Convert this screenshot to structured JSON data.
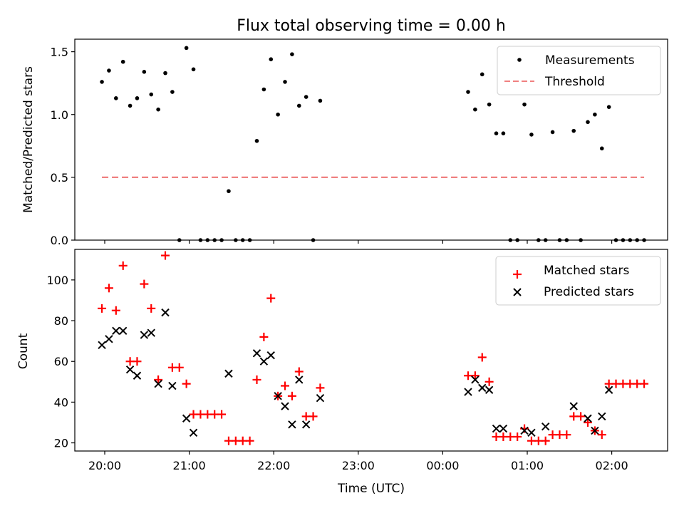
{
  "chart_data": [
    {
      "type": "scatter",
      "title": "Flux total observing time = 0.00 h",
      "xlabel": "",
      "ylabel": "Matched/Predicted stars",
      "ylim": [
        0,
        1.6
      ],
      "yticks": [
        0.0,
        0.5,
        1.0,
        1.5
      ],
      "ytick_labels": [
        "0.0",
        "0.5",
        "1.0",
        "1.5"
      ],
      "legend": {
        "placement": "top-right",
        "entries": [
          "Measurements",
          "Threshold"
        ]
      },
      "colors": {
        "Measurements": "#000000",
        "Threshold": "#f08080"
      },
      "series": [
        {
          "name": "Measurements",
          "x": [
            "19:58",
            "20:03",
            "20:08",
            "20:13",
            "20:18",
            "20:23",
            "20:28",
            "20:33",
            "20:38",
            "20:43",
            "20:48",
            "20:53",
            "20:58",
            "21:03",
            "21:08",
            "21:13",
            "21:18",
            "21:23",
            "21:28",
            "21:33",
            "21:38",
            "21:43",
            "21:48",
            "21:53",
            "21:58",
            "22:03",
            "22:08",
            "22:13",
            "22:18",
            "22:23",
            "22:28",
            "22:33",
            "00:18",
            "00:23",
            "00:28",
            "00:33",
            "00:38",
            "00:43",
            "00:48",
            "00:53",
            "00:58",
            "01:03",
            "01:08",
            "01:13",
            "01:18",
            "01:23",
            "01:28",
            "01:33",
            "01:38",
            "01:43",
            "01:48",
            "01:53",
            "01:58",
            "02:03",
            "02:08",
            "02:13",
            "02:18",
            "02:23"
          ],
          "y": [
            1.26,
            1.35,
            1.13,
            1.42,
            1.07,
            1.13,
            1.34,
            1.16,
            1.04,
            1.33,
            1.18,
            0,
            1.53,
            1.36,
            0,
            0,
            0,
            0,
            0.39,
            0,
            0,
            0,
            0.79,
            1.2,
            1.44,
            1.0,
            1.26,
            1.48,
            1.07,
            1.14,
            0,
            1.11,
            1.18,
            1.04,
            1.32,
            1.08,
            0.85,
            0.85,
            0,
            0,
            1.08,
            0.84,
            0,
            0,
            0.86,
            0,
            0,
            0.87,
            0,
            0.94,
            1.0,
            0.73,
            1.06,
            0,
            0,
            0,
            0,
            0
          ]
        },
        {
          "name": "Threshold",
          "x": [
            "19:58",
            "02:23"
          ],
          "y": [
            0.5,
            0.5
          ]
        }
      ]
    },
    {
      "type": "scatter",
      "title": "",
      "xlabel": "Time (UTC)",
      "ylabel": "Count",
      "ylim": [
        16,
        115
      ],
      "yticks": [
        20,
        40,
        60,
        80,
        100
      ],
      "ytick_labels": [
        "20",
        "40",
        "60",
        "80",
        "100"
      ],
      "x_ticks": [
        "20:00",
        "21:00",
        "22:00",
        "23:00",
        "00:00",
        "01:00",
        "02:00"
      ],
      "legend": {
        "placement": "top-right",
        "entries": [
          "Matched stars",
          "Predicted stars"
        ]
      },
      "colors": {
        "Matched stars": "#ff0000",
        "Predicted stars": "#000000"
      },
      "series": [
        {
          "name": "Matched stars",
          "x": [
            "19:58",
            "20:03",
            "20:08",
            "20:13",
            "20:18",
            "20:23",
            "20:28",
            "20:33",
            "20:38",
            "20:43",
            "20:48",
            "20:53",
            "20:58",
            "21:03",
            "21:08",
            "21:13",
            "21:18",
            "21:23",
            "21:28",
            "21:33",
            "21:38",
            "21:43",
            "21:48",
            "21:53",
            "21:58",
            "22:03",
            "22:08",
            "22:13",
            "22:18",
            "22:23",
            "22:28",
            "22:33",
            "00:18",
            "00:23",
            "00:28",
            "00:33",
            "00:38",
            "00:43",
            "00:48",
            "00:53",
            "00:58",
            "01:03",
            "01:08",
            "01:13",
            "01:18",
            "01:23",
            "01:28",
            "01:33",
            "01:38",
            "01:43",
            "01:48",
            "01:53",
            "01:58",
            "02:03",
            "02:08",
            "02:13",
            "02:18",
            "02:23"
          ],
          "y": [
            86,
            96,
            85,
            107,
            60,
            60,
            98,
            86,
            51,
            112,
            57,
            57,
            49,
            34,
            34,
            34,
            34,
            34,
            21,
            21,
            21,
            21,
            51,
            72,
            91,
            43,
            48,
            43,
            55,
            33,
            33,
            47,
            53,
            53,
            62,
            50,
            23,
            23,
            23,
            23,
            27,
            21,
            21,
            21,
            24,
            24,
            24,
            33,
            33,
            30,
            26,
            24,
            49,
            49,
            49,
            49,
            49,
            49
          ]
        },
        {
          "name": "Predicted stars",
          "x": [
            "19:58",
            "20:03",
            "20:08",
            "20:13",
            "20:18",
            "20:23",
            "20:28",
            "20:33",
            "20:38",
            "20:43",
            "20:48",
            "20:58",
            "21:03",
            "21:28",
            "21:48",
            "21:53",
            "21:58",
            "22:03",
            "22:08",
            "22:13",
            "22:18",
            "22:23",
            "22:33",
            "00:18",
            "00:23",
            "00:28",
            "00:33",
            "00:38",
            "00:43",
            "00:58",
            "01:03",
            "01:13",
            "01:33",
            "01:43",
            "01:48",
            "01:53",
            "01:58"
          ],
          "y": [
            68,
            71,
            75,
            75,
            56,
            53,
            73,
            74,
            49,
            84,
            48,
            32,
            25,
            54,
            64,
            60,
            63,
            43,
            38,
            29,
            51,
            29,
            42,
            45,
            51,
            47,
            46,
            27,
            27,
            26,
            25,
            28,
            38,
            32,
            26,
            33,
            46
          ]
        }
      ]
    }
  ]
}
